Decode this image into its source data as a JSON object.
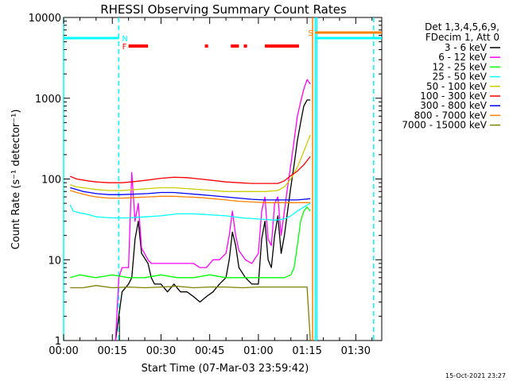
{
  "chart_data": {
    "type": "line",
    "title": "RHESSI Observing Summary Count Rates",
    "xlabel": "Start Time (07-Mar-03 23:59:42)",
    "ylabel": "Count Rate (s⁻¹ detector⁻¹)",
    "yscale": "log",
    "xlim": [
      0,
      98
    ],
    "ylim": [
      1,
      10000
    ],
    "x_unit": "minutes after start time",
    "x_ticks": [
      {
        "value": 0,
        "label": "00:00"
      },
      {
        "value": 15,
        "label": "00:15"
      },
      {
        "value": 30,
        "label": "00:30"
      },
      {
        "value": 45,
        "label": "00:45"
      },
      {
        "value": 60,
        "label": "01:00"
      },
      {
        "value": 75,
        "label": "01:15"
      },
      {
        "value": 90,
        "label": "01:30"
      }
    ],
    "y_ticks": [
      {
        "value": 1,
        "label": "1"
      },
      {
        "value": 10,
        "label": "10"
      },
      {
        "value": 100,
        "label": "100"
      },
      {
        "value": 1000,
        "label": "1000"
      },
      {
        "value": 10000,
        "label": "10000"
      }
    ],
    "grid": false,
    "legend_header": [
      "Det 1,3,4,5,6,9,",
      "FDecim 1, Att 0"
    ],
    "legend_position": "top-right",
    "series": [
      {
        "name": "3 - 6 keV",
        "color": "#000000",
        "x": [
          16,
          18,
          20,
          21,
          22,
          23,
          24,
          26,
          27,
          28,
          30,
          32,
          34,
          36,
          38,
          40,
          42,
          44,
          46,
          48,
          50,
          51,
          52,
          53,
          54,
          56,
          58,
          60,
          61,
          62,
          63,
          64,
          65,
          66,
          67,
          68,
          69,
          70,
          71,
          72,
          73,
          74,
          75,
          76
        ],
        "y": [
          1,
          4,
          5,
          6,
          18,
          30,
          12,
          9,
          6,
          5,
          5,
          4,
          5,
          4,
          4,
          3.5,
          3,
          3.5,
          4,
          5,
          6,
          10,
          22,
          15,
          8,
          6,
          5,
          5,
          18,
          30,
          10,
          8,
          20,
          35,
          12,
          20,
          40,
          80,
          150,
          300,
          500,
          800,
          950,
          950
        ]
      },
      {
        "name": "6 - 12 keV",
        "color": "#ff00ff",
        "x": [
          16,
          17,
          18,
          20,
          21,
          22,
          23,
          24,
          26,
          27,
          28,
          30,
          32,
          34,
          36,
          38,
          40,
          42,
          44,
          46,
          48,
          50,
          51,
          52,
          53,
          54,
          56,
          58,
          60,
          61,
          62,
          63,
          64,
          65,
          66,
          67,
          68,
          69,
          70,
          71,
          72,
          73,
          74,
          75,
          76
        ],
        "y": [
          1,
          6,
          8,
          8,
          120,
          30,
          50,
          14,
          10,
          9,
          9,
          9,
          9,
          9,
          9,
          9,
          9,
          8,
          8,
          10,
          10,
          12,
          20,
          40,
          20,
          13,
          10,
          9,
          12,
          40,
          60,
          18,
          15,
          50,
          60,
          20,
          40,
          80,
          150,
          300,
          600,
          900,
          1300,
          1700,
          1500
        ]
      },
      {
        "name": "12 - 25 keV",
        "color": "#00ff00",
        "x": [
          2,
          5,
          10,
          15,
          20,
          25,
          30,
          35,
          40,
          45,
          50,
          55,
          60,
          65,
          68,
          70,
          71,
          72,
          73,
          74,
          75,
          76
        ],
        "y": [
          6,
          6.5,
          6,
          6.5,
          6,
          6,
          6.5,
          6,
          6,
          6.5,
          6,
          6,
          6,
          6,
          6,
          6.5,
          8,
          15,
          30,
          40,
          45,
          40
        ]
      },
      {
        "name": "25 - 50 keV",
        "color": "#00ffff",
        "x": [
          2,
          3,
          5,
          8,
          10,
          15,
          20,
          25,
          30,
          35,
          40,
          45,
          50,
          55,
          60,
          65,
          68,
          70,
          72,
          74,
          76
        ],
        "y": [
          48,
          40,
          38,
          36,
          34,
          33,
          33,
          34,
          35,
          37,
          37,
          36,
          35,
          33,
          32,
          31,
          32,
          35,
          40,
          45,
          50
        ]
      },
      {
        "name": "50 - 100 keV",
        "color": "#cccc00",
        "x": [
          2,
          4,
          6,
          8,
          10,
          14,
          18,
          22,
          26,
          30,
          34,
          38,
          42,
          46,
          50,
          54,
          58,
          62,
          66,
          68,
          70,
          72,
          74,
          76
        ],
        "y": [
          85,
          80,
          78,
          76,
          74,
          72,
          72,
          74,
          76,
          78,
          78,
          76,
          74,
          72,
          70,
          70,
          70,
          70,
          72,
          80,
          100,
          140,
          220,
          350
        ]
      },
      {
        "name": "100 - 300 keV",
        "color": "#ff0000",
        "x": [
          2,
          4,
          6,
          8,
          10,
          14,
          18,
          22,
          26,
          30,
          34,
          38,
          42,
          46,
          50,
          54,
          58,
          62,
          66,
          68,
          70,
          72,
          74,
          76
        ],
        "y": [
          108,
          100,
          97,
          94,
          92,
          90,
          90,
          93,
          97,
          102,
          105,
          104,
          100,
          96,
          92,
          90,
          88,
          88,
          88,
          95,
          110,
          125,
          150,
          190
        ]
      },
      {
        "name": "300 - 800 keV",
        "color": "#0000ff",
        "x": [
          2,
          4,
          6,
          8,
          10,
          14,
          18,
          22,
          26,
          30,
          34,
          38,
          42,
          46,
          50,
          54,
          58,
          62,
          66,
          68,
          70,
          72,
          74,
          76
        ],
        "y": [
          78,
          74,
          70,
          68,
          66,
          64,
          64,
          65,
          66,
          68,
          68,
          66,
          64,
          62,
          60,
          58,
          56,
          55,
          55,
          55,
          55,
          55,
          56,
          57
        ]
      },
      {
        "name": "800 - 7000 keV",
        "color": "#ff8000",
        "x": [
          2,
          4,
          6,
          8,
          10,
          14,
          18,
          22,
          26,
          30,
          34,
          38,
          42,
          46,
          50,
          54,
          58,
          62,
          66,
          70,
          73,
          76
        ],
        "y": [
          72,
          68,
          65,
          62,
          60,
          58,
          58,
          59,
          60,
          61,
          61,
          60,
          59,
          57,
          55,
          53,
          52,
          51,
          51,
          51,
          51,
          51
        ]
      },
      {
        "name": "7000 - 15000 keV",
        "color": "#808000",
        "x": [
          2,
          6,
          10,
          15,
          20,
          25,
          30,
          35,
          40,
          45,
          50,
          55,
          60,
          65,
          70,
          73,
          75,
          76
        ],
        "y": [
          4.5,
          4.5,
          4.8,
          4.5,
          4.6,
          4.5,
          4.6,
          4.7,
          4.5,
          4.6,
          4.6,
          4.5,
          4.6,
          4.6,
          4.6,
          4.6,
          4.6,
          1
        ]
      }
    ],
    "state_bars": [
      {
        "label": "F",
        "color": "#ff0000",
        "ranges": [
          [
            20,
            26
          ],
          [
            43.5,
            44.5
          ],
          [
            51.5,
            54
          ],
          [
            55.5,
            56.5
          ],
          [
            62,
            72.5
          ]
        ]
      },
      {
        "label": "N",
        "color": "#00ffff",
        "ranges": [
          [
            0,
            17
          ]
        ]
      },
      {
        "label": "S",
        "color": "#ff8000",
        "ranges": [
          [
            77.5,
            98
          ]
        ]
      },
      {
        "label": "",
        "color": "#00ffff",
        "ranges": [
          [
            77.5,
            98
          ]
        ]
      }
    ],
    "vertical_markers": [
      {
        "x": 0,
        "color": "#00ffff",
        "style": "solid"
      },
      {
        "x": 17,
        "color": "#00ffff",
        "style": "dashed"
      },
      {
        "x": 17.2,
        "color": "#000000",
        "style": "solid-partial"
      },
      {
        "x": 76.7,
        "color": "#ff8000",
        "style": "solid"
      },
      {
        "x": 77.5,
        "color": "#00ffff",
        "style": "solid"
      },
      {
        "x": 78,
        "color": "#00ffff",
        "style": "solid"
      },
      {
        "x": 95.5,
        "color": "#ff8000",
        "style": "dashed"
      },
      {
        "x": 95.5,
        "color": "#00ffff",
        "style": "dashed"
      }
    ],
    "footer_timestamp": "15-Oct-2021 23:27"
  }
}
